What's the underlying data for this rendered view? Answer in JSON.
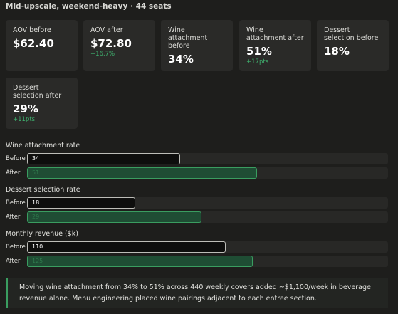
{
  "header": {
    "title": "Mid-upscale, weekend-heavy · 44 seats"
  },
  "cards": [
    {
      "label": "AOV before",
      "value": "$62.40"
    },
    {
      "label": "AOV after",
      "value": "$72.80",
      "delta": "+16.7%"
    },
    {
      "label": "Wine attachment before",
      "value": "34%"
    },
    {
      "label": "Wine attachment after",
      "value": "51%",
      "delta": "+17pts"
    },
    {
      "label": "Dessert selection before",
      "value": "18%"
    },
    {
      "label": "Dessert selection after",
      "value": "29%",
      "delta": "+11pts"
    }
  ],
  "row_labels": [
    "Before",
    "After"
  ],
  "sections": [
    {
      "label": "Wine attachment rate",
      "values": [
        34,
        51
      ],
      "xlim": [
        0,
        80
      ]
    },
    {
      "label": "Dessert selection rate",
      "values": [
        18,
        29
      ],
      "xlim": [
        0,
        60
      ]
    },
    {
      "label": "Monthly revenue ($k)",
      "values": [
        110,
        125
      ],
      "xlim": [
        0,
        200
      ]
    }
  ],
  "note": "Moving wine attachment from 34% to 51% across 440 weekly covers added ~$1,100/week in beverage revenue alone. Menu engineering placed wine pairings adjacent to each entree section."
}
